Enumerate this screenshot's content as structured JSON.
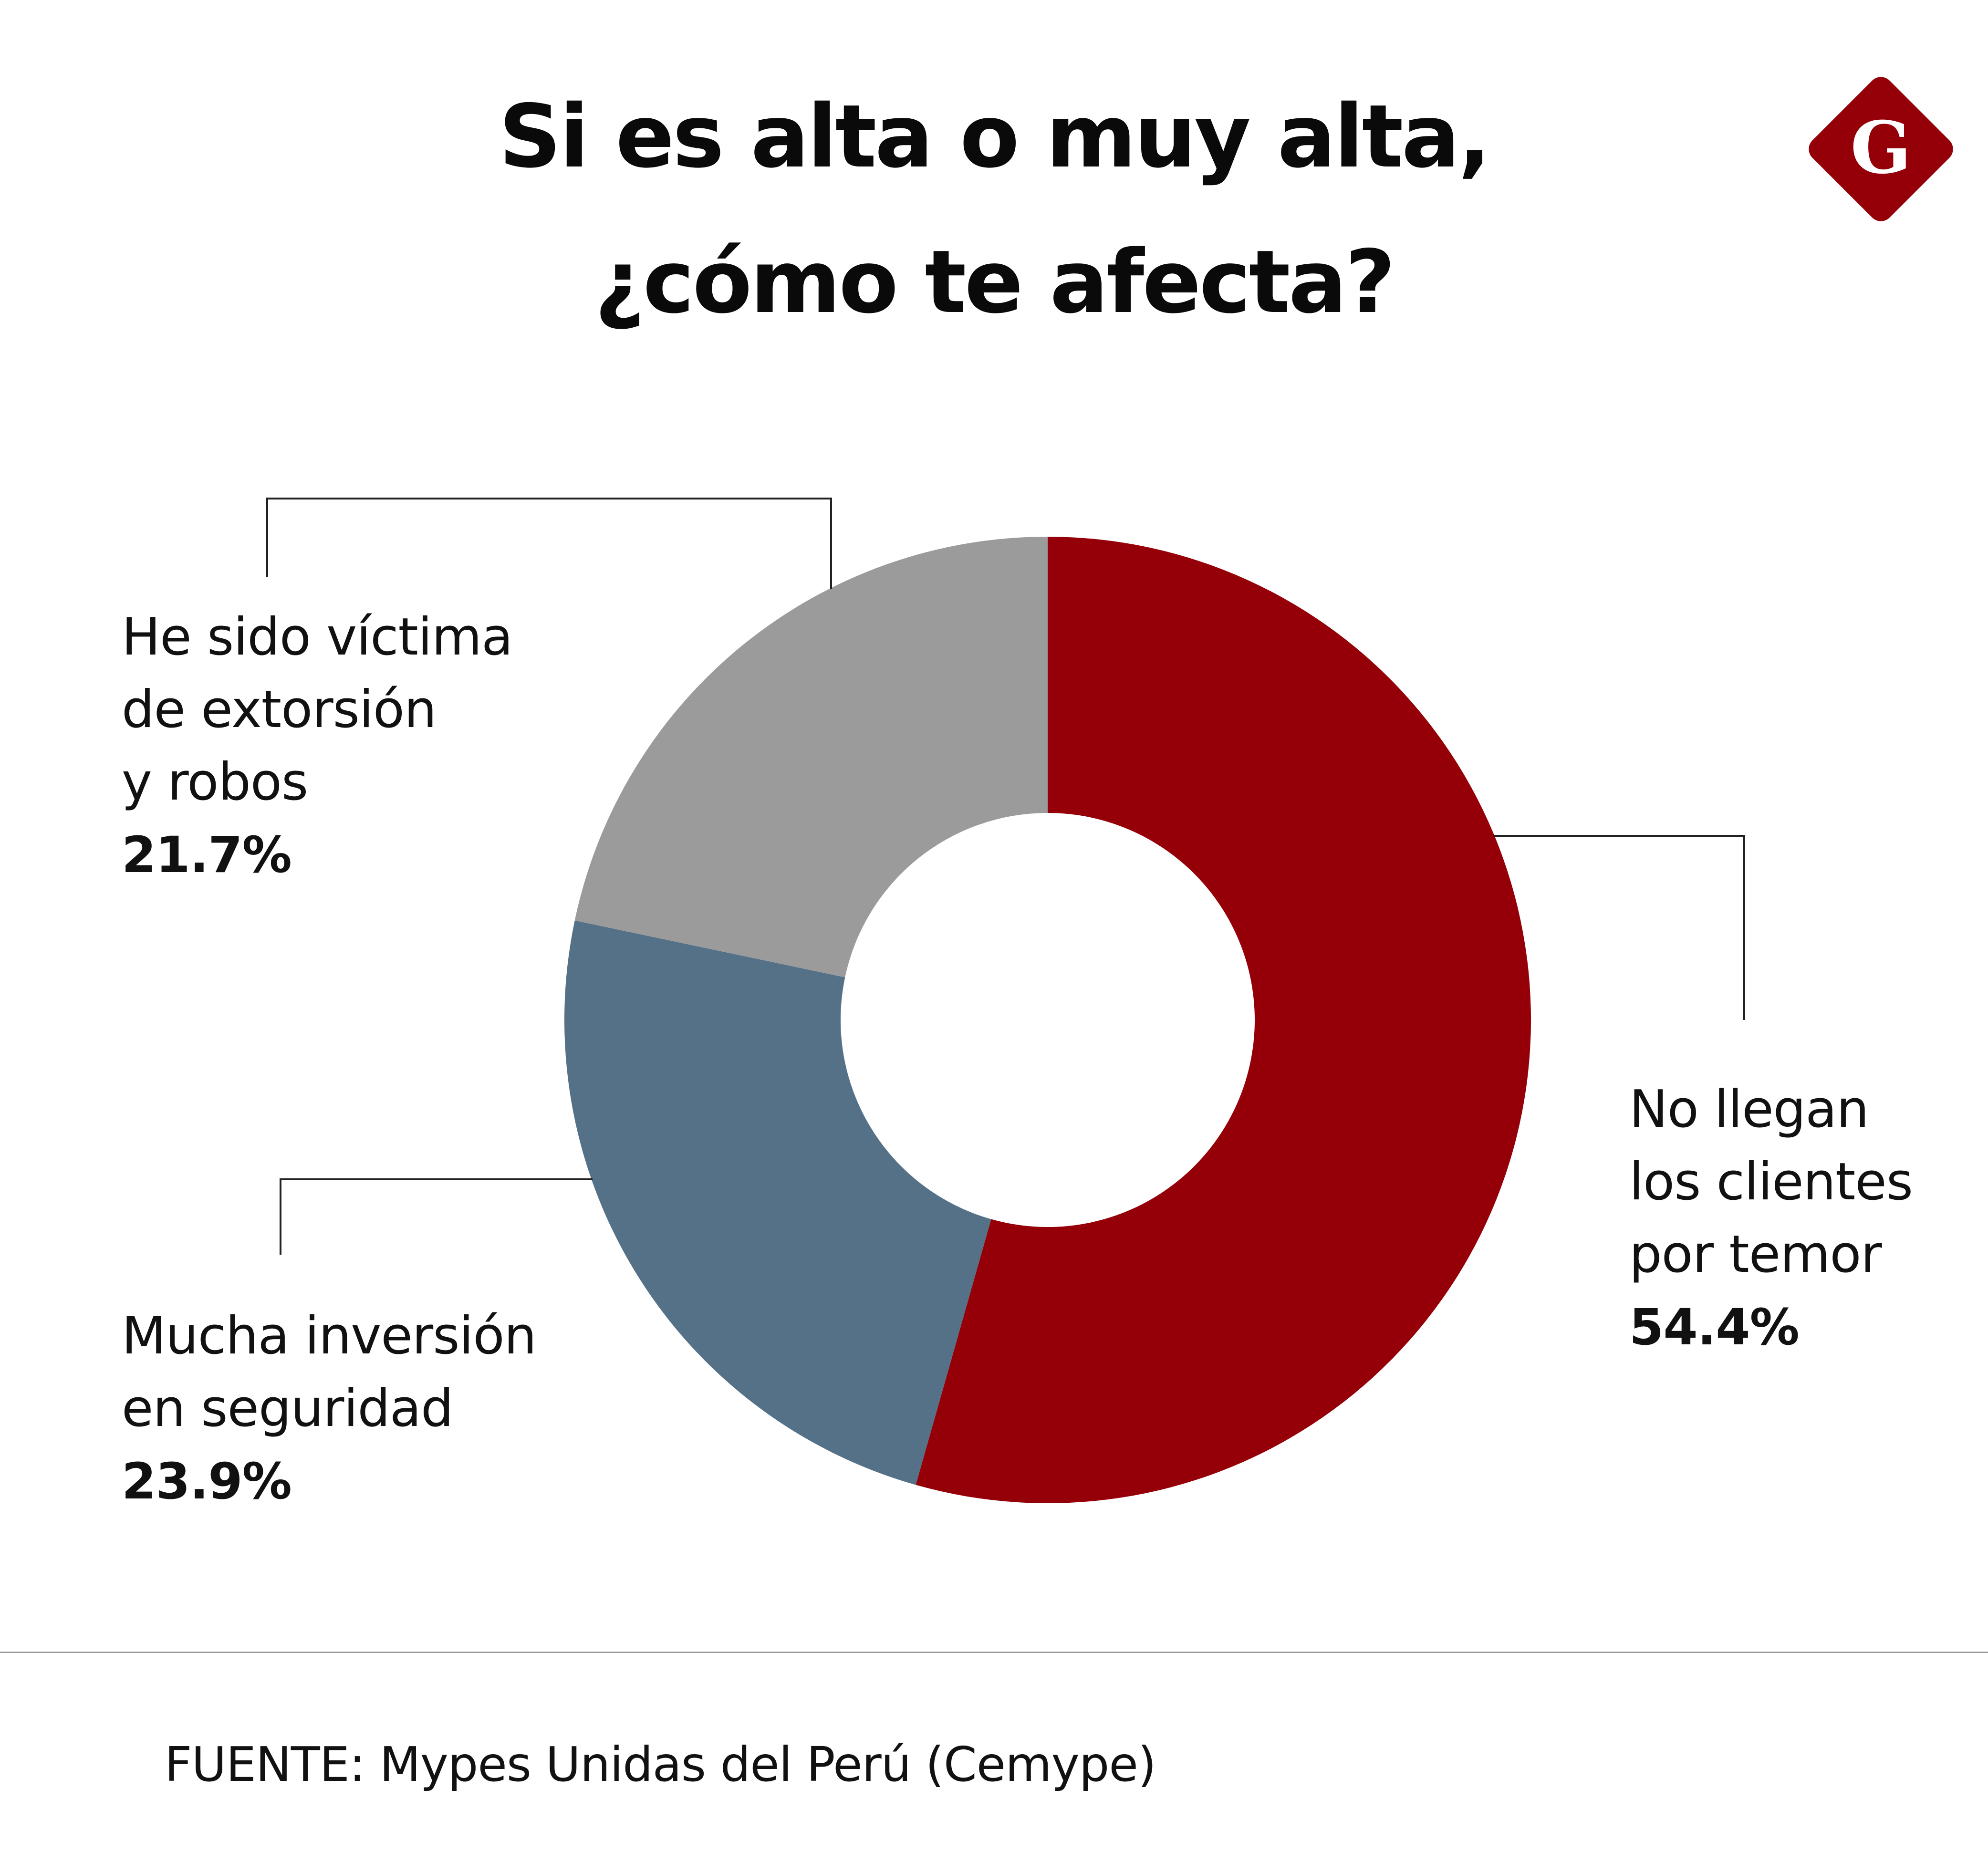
{
  "title": {
    "line1": "Si es alta o muy alta,",
    "line2": "¿cómo te afecta?"
  },
  "logo": {
    "letter": "G",
    "color": "#950008"
  },
  "chart_data": {
    "type": "pie",
    "variant": "donut",
    "title": "Si es alta o muy alta, ¿cómo te afecta?",
    "unit": "%",
    "slices": [
      {
        "name": "No llegan los clientes por temor",
        "lines": [
          "No llegan",
          "los clientes",
          "por temor"
        ],
        "value": 54.4,
        "value_label": "54.4%",
        "color": "#950008"
      },
      {
        "name": "Mucha inversión en seguridad",
        "lines": [
          "Mucha inversión",
          "en seguridad"
        ],
        "value": 23.9,
        "value_label": "23.9%",
        "color": "#557187"
      },
      {
        "name": "He sido víctima de extorsión y robos",
        "lines": [
          "He sido víctima",
          "de extorsión",
          "y robos"
        ],
        "value": 21.7,
        "value_label": "21.7%",
        "color": "#9b9b9b"
      }
    ]
  },
  "source": "FUENTE: Mypes Unidas del Perú (Cemype)"
}
